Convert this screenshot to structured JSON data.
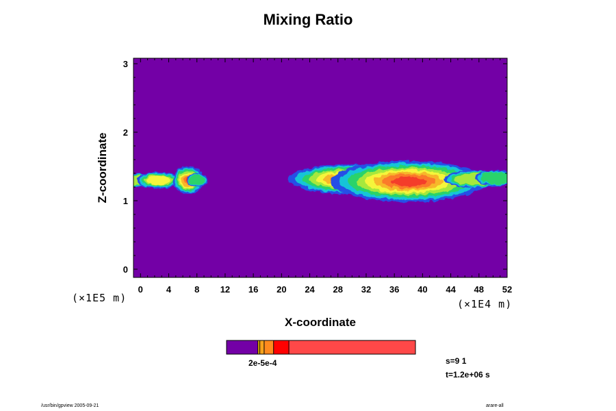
{
  "chart_data": {
    "type": "heatmap",
    "title": "Mixing Ratio",
    "xlabel": "X-coordinate",
    "ylabel": "Z-coordinate",
    "x_unit": "(×1E4 m)",
    "y_unit": "(×1E5 m)",
    "xlim": [
      -1,
      52
    ],
    "ylim": [
      -0.12,
      3.08
    ],
    "x_ticks": [
      "0",
      "4",
      "8",
      "12",
      "16",
      "20",
      "24",
      "28",
      "32",
      "36",
      "40",
      "44",
      "48",
      "52"
    ],
    "y_ticks": [
      "0",
      "1",
      "2",
      "3"
    ],
    "background_level_color": "#7300a6",
    "level_colors": [
      "#2850e6",
      "#18c4d8",
      "#2ad36a",
      "#a6e83c",
      "#f5f53a",
      "#f7b72a",
      "#fb7a2c",
      "#f43c2c"
    ],
    "colorbar": {
      "colors": [
        "#7300a6",
        "#f5c000",
        "#f7a21c",
        "#ff8a1e",
        "#ff0000",
        "#ff4848",
        "#fa9c9c"
      ],
      "bounds": [
        0,
        0.166,
        0.176,
        0.199,
        0.249,
        0.33,
        1
      ],
      "label": "2e-5e-4"
    },
    "step_label": "s=9 1",
    "time_label": "t=1.2e+06 s"
  },
  "footer": {
    "left": "/usr/bin/gpview 2005-09-21",
    "right": "arare-all"
  }
}
